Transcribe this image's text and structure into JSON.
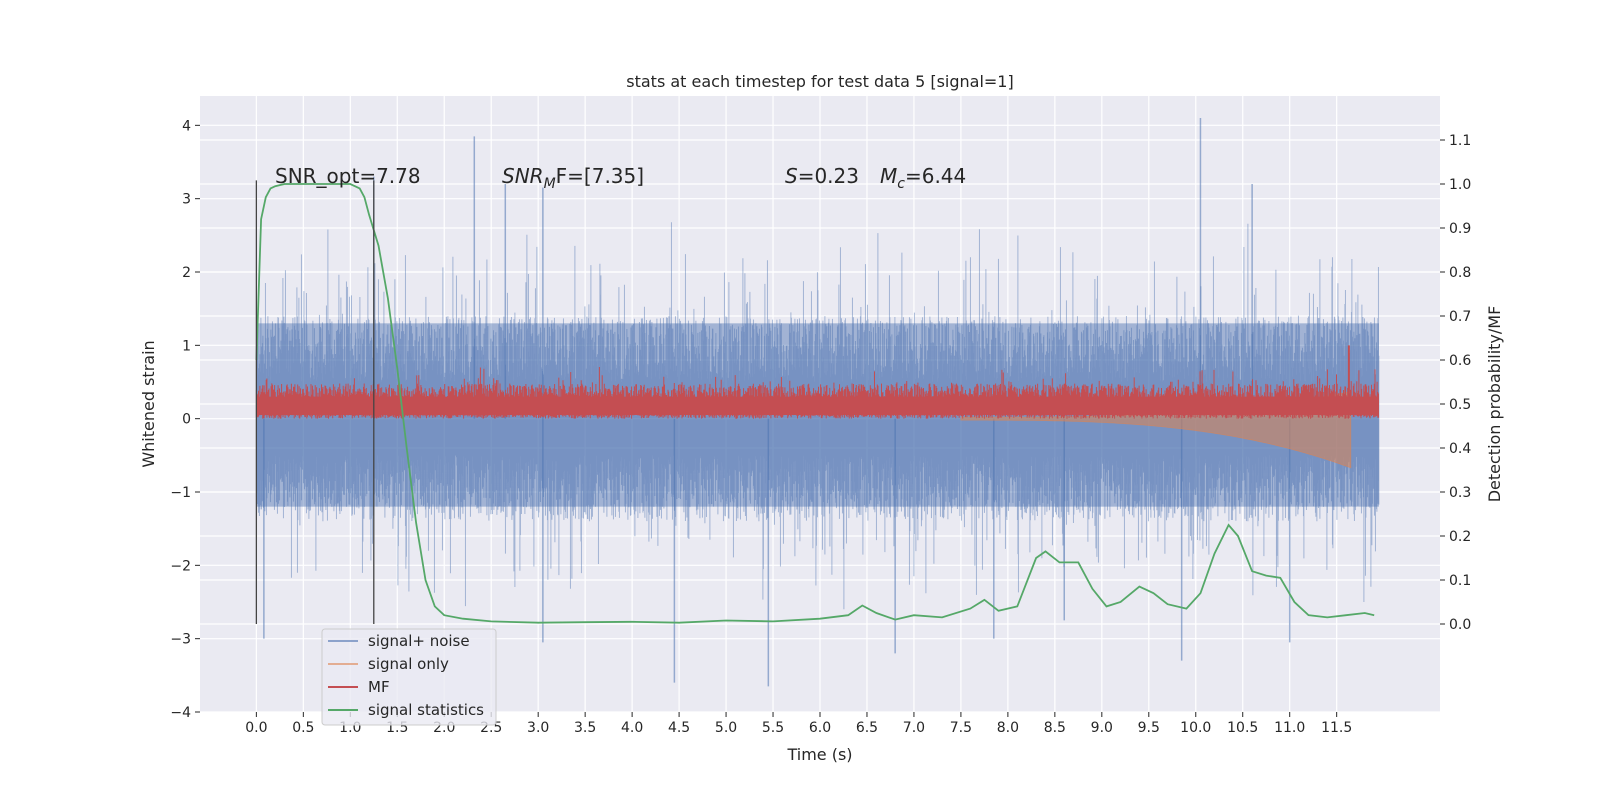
{
  "chart_data": {
    "type": "line",
    "title": "stats at each timestep for test data 5 [signal=1]",
    "xlabel": "Time (s)",
    "ylabel": "Whitened strain",
    "y2label": "Detection probability/MF",
    "xlim": [
      -0.6,
      12.6
    ],
    "ylim": [
      -4.0,
      4.4
    ],
    "y2lim": [
      -0.2,
      1.2
    ],
    "x_ticks": [
      0.0,
      0.5,
      1.0,
      1.5,
      2.0,
      2.5,
      3.0,
      3.5,
      4.0,
      4.5,
      5.0,
      5.5,
      6.0,
      6.5,
      7.0,
      7.5,
      8.0,
      8.5,
      9.0,
      9.5,
      10.0,
      10.5,
      11.0,
      11.5
    ],
    "x_tick_labels": [
      "0.0",
      "0.5",
      "1.0",
      "1.5",
      "2.0",
      "2.5",
      "3.0",
      "3.5",
      "4.0",
      "4.5",
      "5.0",
      "5.5",
      "6.0",
      "6.5",
      "7.0",
      "7.5",
      "8.0",
      "8.5",
      "9.0",
      "9.5",
      "10.0",
      "10.5",
      "11.0",
      "11.5"
    ],
    "y_ticks": [
      -4,
      -3,
      -2,
      -1,
      0,
      1,
      2,
      3,
      4
    ],
    "y_tick_labels": [
      "−4",
      "−3",
      "−2",
      "−1",
      "0",
      "1",
      "2",
      "3",
      "4"
    ],
    "y2_ticks": [
      0.0,
      0.1,
      0.2,
      0.3,
      0.4,
      0.5,
      0.6,
      0.7,
      0.8,
      0.9,
      1.0,
      1.1
    ],
    "y2_tick_labels": [
      "0.0",
      "0.1",
      "0.2",
      "0.3",
      "0.4",
      "0.5",
      "0.6",
      "0.7",
      "0.8",
      "0.9",
      "1.0",
      "1.1"
    ],
    "grid": true,
    "legend_position": "lower-left",
    "annotations": {
      "snr_opt": "SNR_opt=7.78",
      "snr_mf_main": "SNR",
      "snr_mf_sub": "M",
      "snr_mf_rest": "F=[7.35]",
      "s_main": "S",
      "s_rest": "=0.23",
      "mc_main": "M",
      "mc_sub": "c",
      "mc_rest": "=6.44"
    },
    "vlines_x": [
      0.0,
      1.25
    ],
    "series": [
      {
        "name": "signal+ noise",
        "color": "#4c72b0",
        "kind": "noise",
        "x_range": [
          0.0,
          11.95
        ],
        "band": [
          -1.2,
          1.3
        ],
        "peaks": [
          [
            2.32,
            3.85
          ],
          [
            10.05,
            4.1
          ],
          [
            1.25,
            3.3
          ],
          [
            2.65,
            3.2
          ],
          [
            3.05,
            3.15
          ],
          [
            10.6,
            3.2
          ],
          [
            4.45,
            -3.6
          ],
          [
            5.45,
            -3.65
          ],
          [
            0.08,
            -3.0
          ],
          [
            3.05,
            -3.05
          ],
          [
            11.0,
            -3.05
          ],
          [
            9.85,
            -3.3
          ],
          [
            6.8,
            -3.2
          ],
          [
            8.6,
            -2.75
          ],
          [
            7.85,
            -3.0
          ]
        ]
      },
      {
        "name": "signal only",
        "color": "#dd8452",
        "kind": "chirp",
        "x_range": [
          7.5,
          11.65
        ],
        "min_at_end": -0.65
      },
      {
        "name": "MF",
        "color": "#c44e52",
        "kind": "mf",
        "x_range": [
          0.0,
          11.95
        ],
        "band": [
          0.0,
          0.4
        ],
        "peak": [
          11.63,
          1.0
        ]
      },
      {
        "name": "signal statistics",
        "color": "#55a868",
        "kind": "curve",
        "axis": "right",
        "x": [
          0.0,
          0.05,
          0.1,
          0.15,
          0.2,
          0.3,
          0.4,
          0.6,
          0.8,
          1.0,
          1.1,
          1.15,
          1.2,
          1.3,
          1.4,
          1.5,
          1.6,
          1.7,
          1.8,
          1.9,
          2.0,
          2.2,
          2.5,
          3.0,
          3.5,
          4.0,
          4.5,
          5.0,
          5.5,
          6.0,
          6.3,
          6.45,
          6.6,
          6.8,
          7.0,
          7.3,
          7.6,
          7.75,
          7.9,
          8.1,
          8.3,
          8.4,
          8.55,
          8.75,
          8.9,
          9.05,
          9.2,
          9.4,
          9.55,
          9.7,
          9.9,
          10.05,
          10.2,
          10.35,
          10.45,
          10.6,
          10.75,
          10.9,
          11.05,
          11.2,
          11.4,
          11.6,
          11.8,
          11.9
        ],
        "y": [
          0.6,
          0.92,
          0.97,
          0.99,
          0.995,
          1.0,
          1.0,
          1.0,
          1.0,
          1.0,
          0.99,
          0.97,
          0.93,
          0.86,
          0.74,
          0.58,
          0.4,
          0.23,
          0.1,
          0.04,
          0.02,
          0.012,
          0.006,
          0.003,
          0.004,
          0.005,
          0.003,
          0.008,
          0.006,
          0.012,
          0.02,
          0.042,
          0.025,
          0.01,
          0.02,
          0.015,
          0.035,
          0.055,
          0.03,
          0.04,
          0.15,
          0.165,
          0.14,
          0.14,
          0.08,
          0.04,
          0.05,
          0.085,
          0.07,
          0.045,
          0.035,
          0.07,
          0.16,
          0.225,
          0.2,
          0.12,
          0.11,
          0.105,
          0.05,
          0.02,
          0.015,
          0.02,
          0.025,
          0.02
        ]
      }
    ]
  }
}
